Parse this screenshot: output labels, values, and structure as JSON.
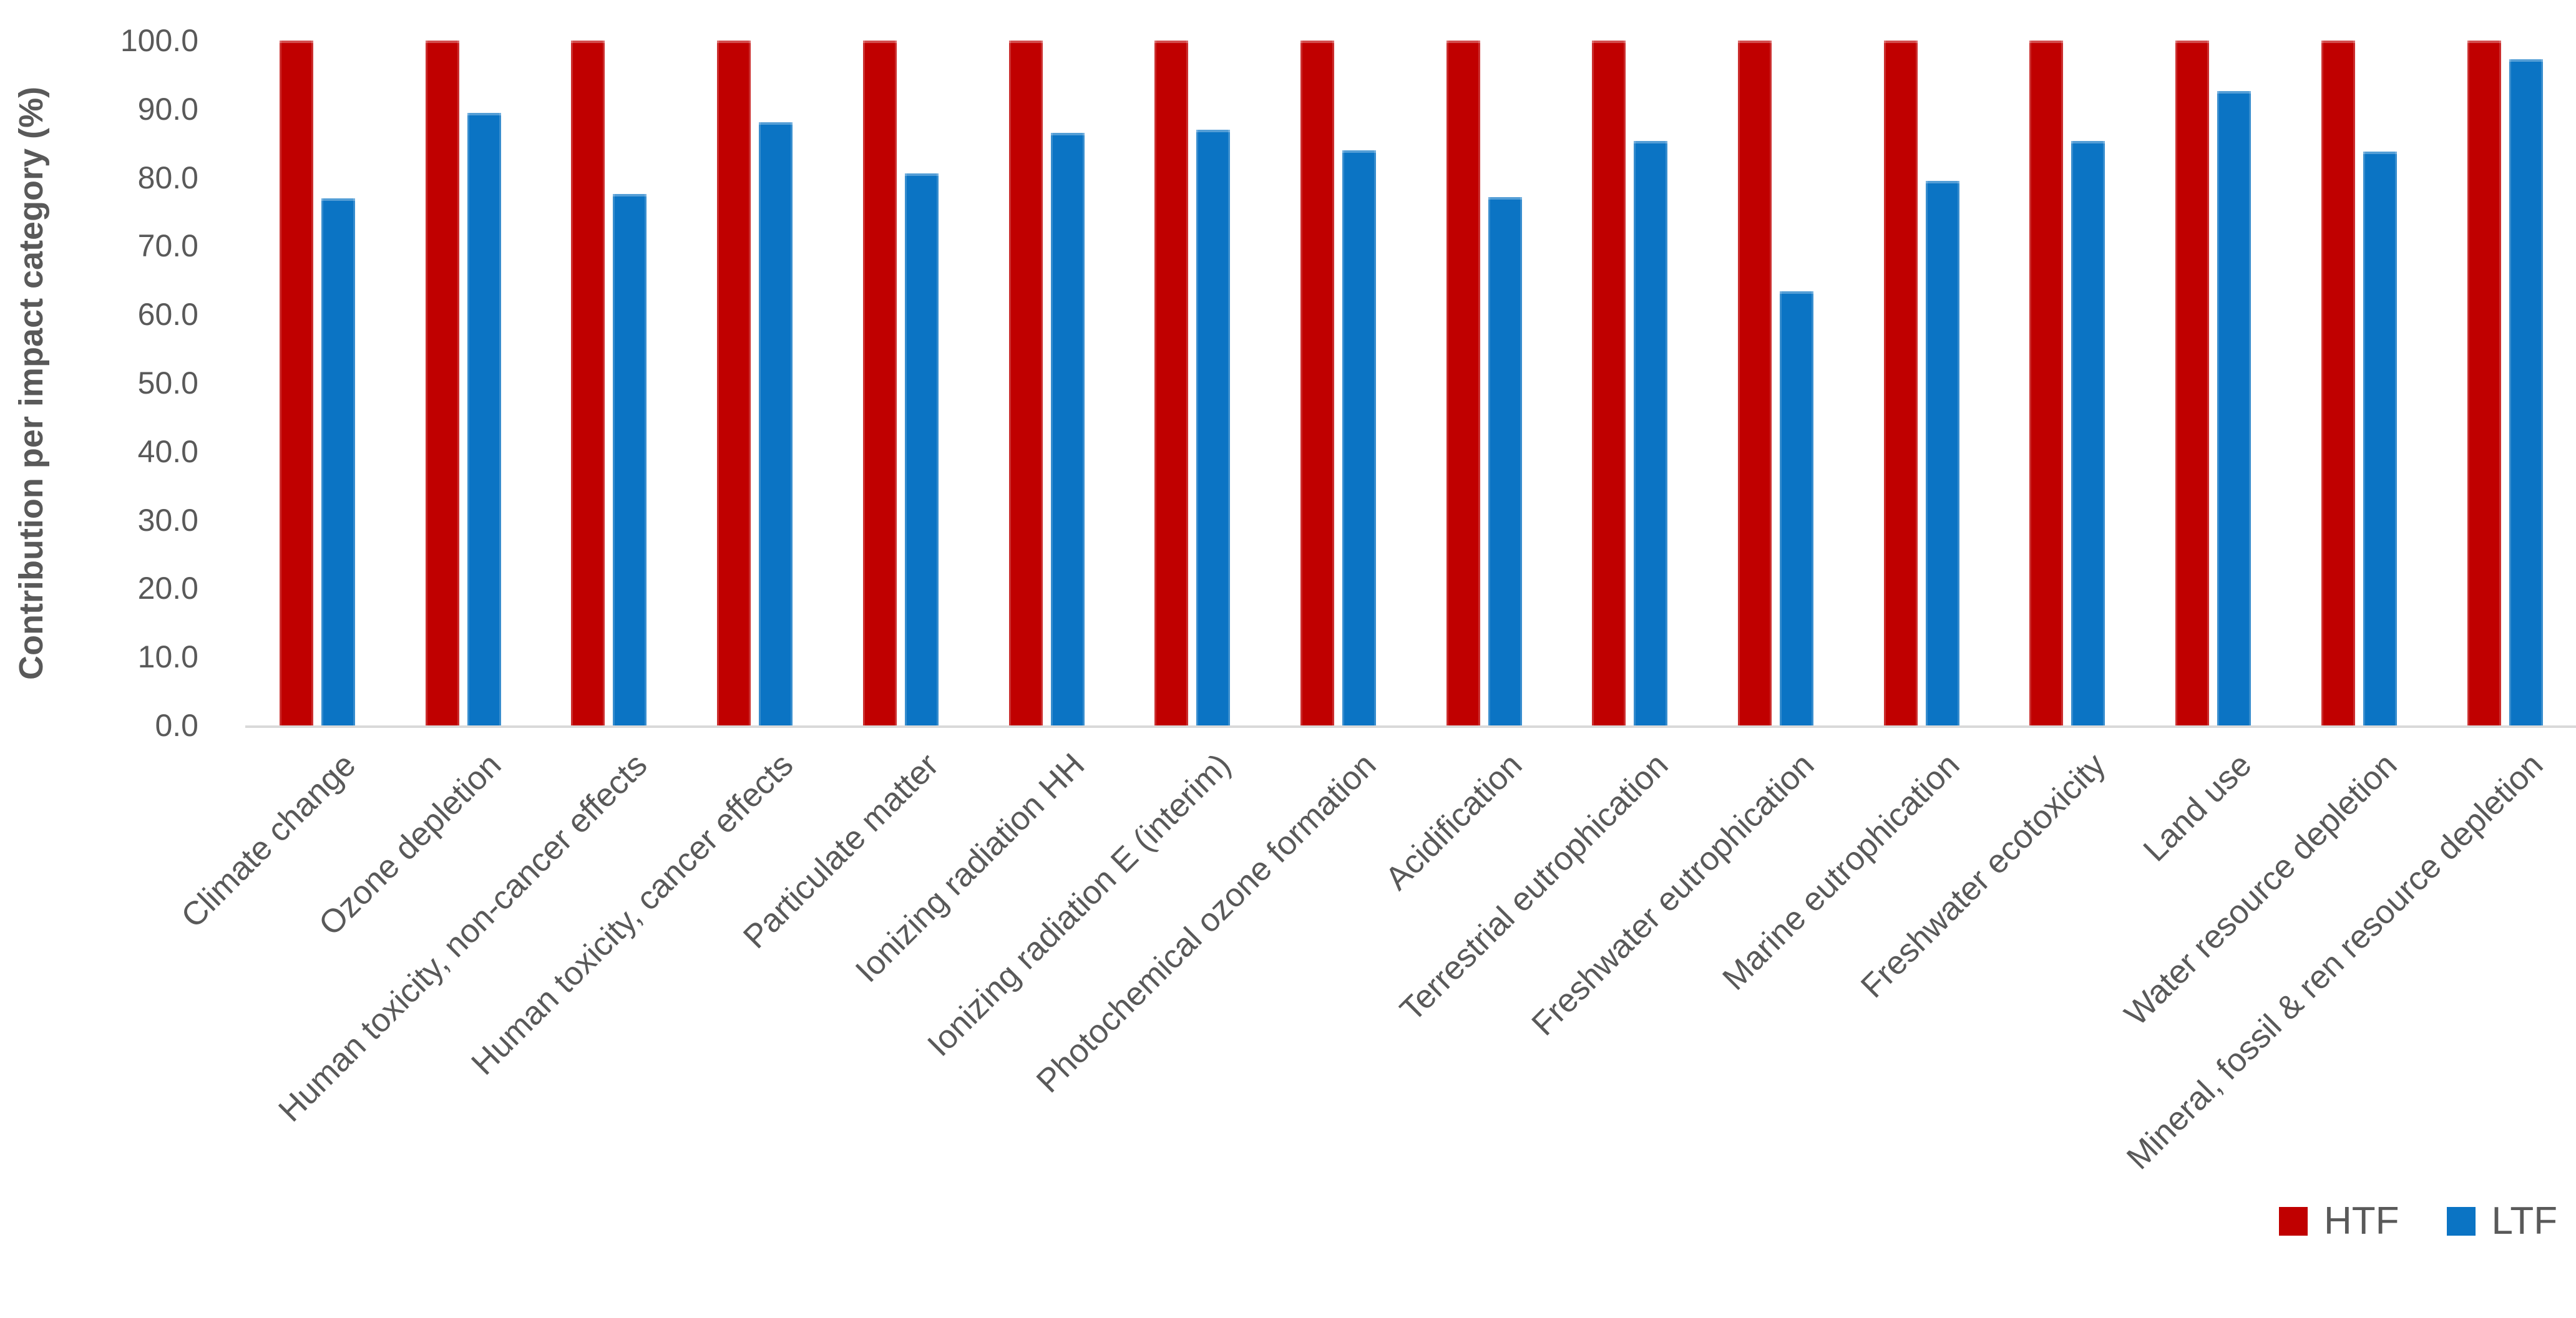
{
  "chart_data": {
    "type": "bar",
    "title": "",
    "ylabel": "Contribution per impact category (%)",
    "xlabel": "",
    "ylim": [
      0,
      100
    ],
    "y_tick_step": 10,
    "y_tick_labels": [
      "100.0",
      "90.0",
      "80.0",
      "70.0",
      "60.0",
      "50.0",
      "40.0",
      "30.0",
      "20.0",
      "10.0",
      "0.0"
    ],
    "grid": false,
    "legend_position": "bottom-right",
    "categories": [
      "Climate change",
      "Ozone depletion",
      "Human toxicity, non-cancer effects",
      "Human toxicity, cancer effects",
      "Particulate matter",
      "Ionizing radiation HH",
      "Ionizing radiation E (interim)",
      "Photochemical ozone formation",
      "Acidification",
      "Terrestrial eutrophication",
      "Freshwater eutrophication",
      "Marine eutrophication",
      "Freshwater ecotoxicity",
      "Land use",
      "Water resource depletion",
      "Mineral, fossil & ren resource depletion"
    ],
    "series": [
      {
        "name": "HTF",
        "color": "#C00000",
        "values": [
          100,
          100,
          100,
          100,
          100,
          100,
          100,
          100,
          100,
          100,
          100,
          100,
          100,
          100,
          100,
          100
        ]
      },
      {
        "name": "LTF",
        "color": "#0B74C4",
        "values": [
          77.0,
          89.4,
          77.6,
          88.1,
          80.6,
          86.5,
          87.0,
          84.0,
          77.1,
          85.3,
          63.4,
          79.5,
          85.3,
          92.6,
          83.8,
          97.3
        ]
      }
    ],
    "axis_text_color": "#595959",
    "axis_line_color": "#D9D9D9"
  }
}
